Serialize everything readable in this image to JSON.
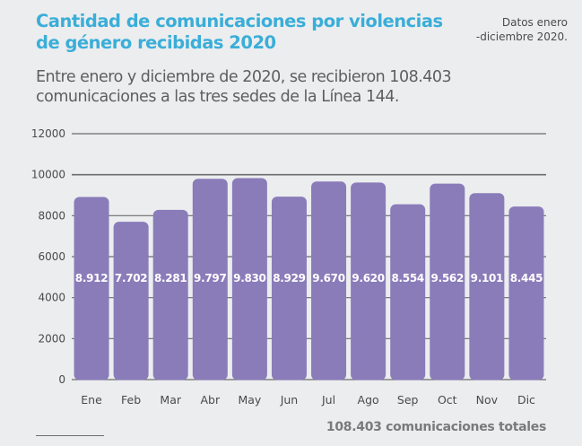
{
  "header": {
    "title": "Cantidad de comunicaciones por violencias de género recibidas 2020",
    "note_lines": [
      "Datos enero",
      "-diciembre 2020."
    ],
    "subtitle": "Entre enero y diciembre de 2020, se recibieron 108.403 comunicaciones a las tres sedes de la Línea 144."
  },
  "footer": {
    "total_text": "108.403 comunicaciones totales"
  },
  "colors": {
    "title": "#3aaed8",
    "bar": "#8a7cb9",
    "grid": "#6d6d6f",
    "background": "#ecedef"
  },
  "chart_data": {
    "type": "bar",
    "title": "Cantidad de comunicaciones por violencias de género recibidas 2020",
    "xlabel": "",
    "ylabel": "",
    "categories": [
      "Ene",
      "Feb",
      "Mar",
      "Abr",
      "May",
      "Jun",
      "Jul",
      "Ago",
      "Sep",
      "Oct",
      "Nov",
      "Dic"
    ],
    "values": [
      8912,
      7702,
      8281,
      9797,
      9830,
      8929,
      9670,
      9620,
      8554,
      9562,
      9101,
      8445
    ],
    "value_labels": [
      "8.912",
      "7.702",
      "8.281",
      "9.797",
      "9.830",
      "8.929",
      "9.670",
      "9.620",
      "8.554",
      "9.562",
      "9.101",
      "8.445"
    ],
    "yticks": [
      0,
      2000,
      4000,
      6000,
      8000,
      10000,
      12000
    ],
    "ytick_labels": [
      "0",
      "2000",
      "4000",
      "6000",
      "8000",
      "10000",
      "12000"
    ],
    "ylim": [
      0,
      12000
    ],
    "grid": true,
    "legend": "none"
  }
}
